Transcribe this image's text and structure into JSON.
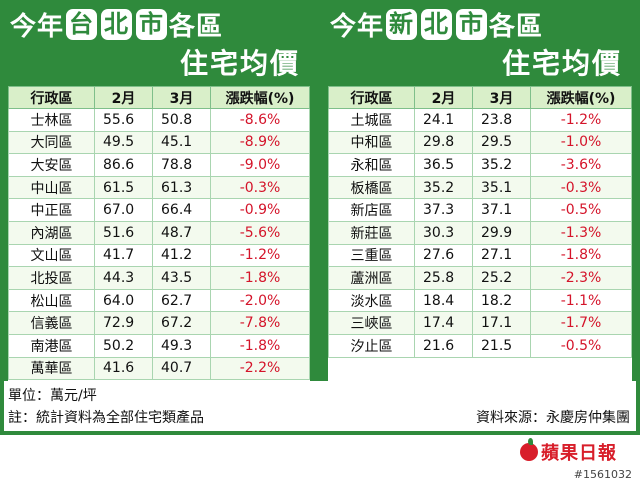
{
  "left": {
    "title": {
      "pre": "今年",
      "hl1": "台",
      "hl2": "北",
      "hl3": "市",
      "post": "各區",
      "line2": "住宅均價"
    },
    "headers": [
      "行政區",
      "2月",
      "3月",
      "漲跌幅(%)"
    ],
    "rows": [
      {
        "district": "士林區",
        "feb": "55.6",
        "mar": "50.8",
        "change": "-8.6%"
      },
      {
        "district": "大同區",
        "feb": "49.5",
        "mar": "45.1",
        "change": "-8.9%"
      },
      {
        "district": "大安區",
        "feb": "86.6",
        "mar": "78.8",
        "change": "-9.0%"
      },
      {
        "district": "中山區",
        "feb": "61.5",
        "mar": "61.3",
        "change": "-0.3%"
      },
      {
        "district": "中正區",
        "feb": "67.0",
        "mar": "66.4",
        "change": "-0.9%"
      },
      {
        "district": "內湖區",
        "feb": "51.6",
        "mar": "48.7",
        "change": "-5.6%"
      },
      {
        "district": "文山區",
        "feb": "41.7",
        "mar": "41.2",
        "change": "-1.2%"
      },
      {
        "district": "北投區",
        "feb": "44.3",
        "mar": "43.5",
        "change": "-1.8%"
      },
      {
        "district": "松山區",
        "feb": "64.0",
        "mar": "62.7",
        "change": "-2.0%"
      },
      {
        "district": "信義區",
        "feb": "72.9",
        "mar": "67.2",
        "change": "-7.8%"
      },
      {
        "district": "南港區",
        "feb": "50.2",
        "mar": "49.3",
        "change": "-1.8%"
      },
      {
        "district": "萬華區",
        "feb": "41.6",
        "mar": "40.7",
        "change": "-2.2%"
      }
    ]
  },
  "right": {
    "title": {
      "pre": "今年",
      "hl1": "新",
      "hl2": "北",
      "hl3": "市",
      "post": "各區",
      "line2": "住宅均價"
    },
    "headers": [
      "行政區",
      "2月",
      "3月",
      "漲跌幅(%)"
    ],
    "rows": [
      {
        "district": "土城區",
        "feb": "24.1",
        "mar": "23.8",
        "change": "-1.2%"
      },
      {
        "district": "中和區",
        "feb": "29.8",
        "mar": "29.5",
        "change": "-1.0%"
      },
      {
        "district": "永和區",
        "feb": "36.5",
        "mar": "35.2",
        "change": "-3.6%"
      },
      {
        "district": "板橋區",
        "feb": "35.2",
        "mar": "35.1",
        "change": "-0.3%"
      },
      {
        "district": "新店區",
        "feb": "37.3",
        "mar": "37.1",
        "change": "-0.5%"
      },
      {
        "district": "新莊區",
        "feb": "30.3",
        "mar": "29.9",
        "change": "-1.3%"
      },
      {
        "district": "三重區",
        "feb": "27.6",
        "mar": "27.1",
        "change": "-1.8%"
      },
      {
        "district": "蘆洲區",
        "feb": "25.8",
        "mar": "25.2",
        "change": "-2.3%"
      },
      {
        "district": "淡水區",
        "feb": "18.4",
        "mar": "18.2",
        "change": "-1.1%"
      },
      {
        "district": "三峽區",
        "feb": "17.4",
        "mar": "17.1",
        "change": "-1.7%"
      },
      {
        "district": "汐止區",
        "feb": "21.6",
        "mar": "21.5",
        "change": "-0.5%"
      }
    ]
  },
  "notes": {
    "unit": "單位：萬元/坪",
    "stat": "註：統計資料為全部住宅類產品",
    "source": "資料來源：永慶房仲集團"
  },
  "logo": {
    "text": "蘋果日報",
    "icon": "apple-logo-icon"
  },
  "photo_id": "#1561032",
  "colors": {
    "frame": "#2f8a3c",
    "header_bg": "#d9efc9",
    "negative": "#d4142a"
  },
  "chart_data": [
    {
      "type": "table",
      "columns": [
        "行政區",
        "2月",
        "3月",
        "漲跌幅(%)"
      ],
      "rows": [
        [
          "士林區",
          55.6,
          50.8,
          -8.6
        ],
        [
          "大同區",
          49.5,
          45.1,
          -8.9
        ],
        [
          "大安區",
          86.6,
          78.8,
          -9.0
        ],
        [
          "中山區",
          61.5,
          61.3,
          -0.3
        ],
        [
          "中正區",
          67.0,
          66.4,
          -0.9
        ],
        [
          "內湖區",
          51.6,
          48.7,
          -5.6
        ],
        [
          "文山區",
          41.7,
          41.2,
          -1.2
        ],
        [
          "北投區",
          44.3,
          43.5,
          -1.8
        ],
        [
          "松山區",
          64.0,
          62.7,
          -2.0
        ],
        [
          "信義區",
          72.9,
          67.2,
          -7.8
        ],
        [
          "南港區",
          50.2,
          49.3,
          -1.8
        ],
        [
          "萬華區",
          41.6,
          40.7,
          -2.2
        ]
      ]
    },
    {
      "type": "table",
      "columns": [
        "行政區",
        "2月",
        "3月",
        "漲跌幅(%)"
      ],
      "rows": [
        [
          "土城區",
          24.1,
          23.8,
          -1.2
        ],
        [
          "中和區",
          29.8,
          29.5,
          -1.0
        ],
        [
          "永和區",
          36.5,
          35.2,
          -3.6
        ],
        [
          "板橋區",
          35.2,
          35.1,
          -0.3
        ],
        [
          "新店區",
          37.3,
          37.1,
          -0.5
        ],
        [
          "新莊區",
          30.3,
          29.9,
          -1.3
        ],
        [
          "三重區",
          27.6,
          27.1,
          -1.8
        ],
        [
          "蘆洲區",
          25.8,
          25.2,
          -2.3
        ],
        [
          "淡水區",
          18.4,
          18.2,
          -1.1
        ],
        [
          "三峽區",
          17.4,
          17.1,
          -1.7
        ],
        [
          "汐止區",
          21.6,
          21.5,
          -0.5
        ]
      ]
    }
  ]
}
